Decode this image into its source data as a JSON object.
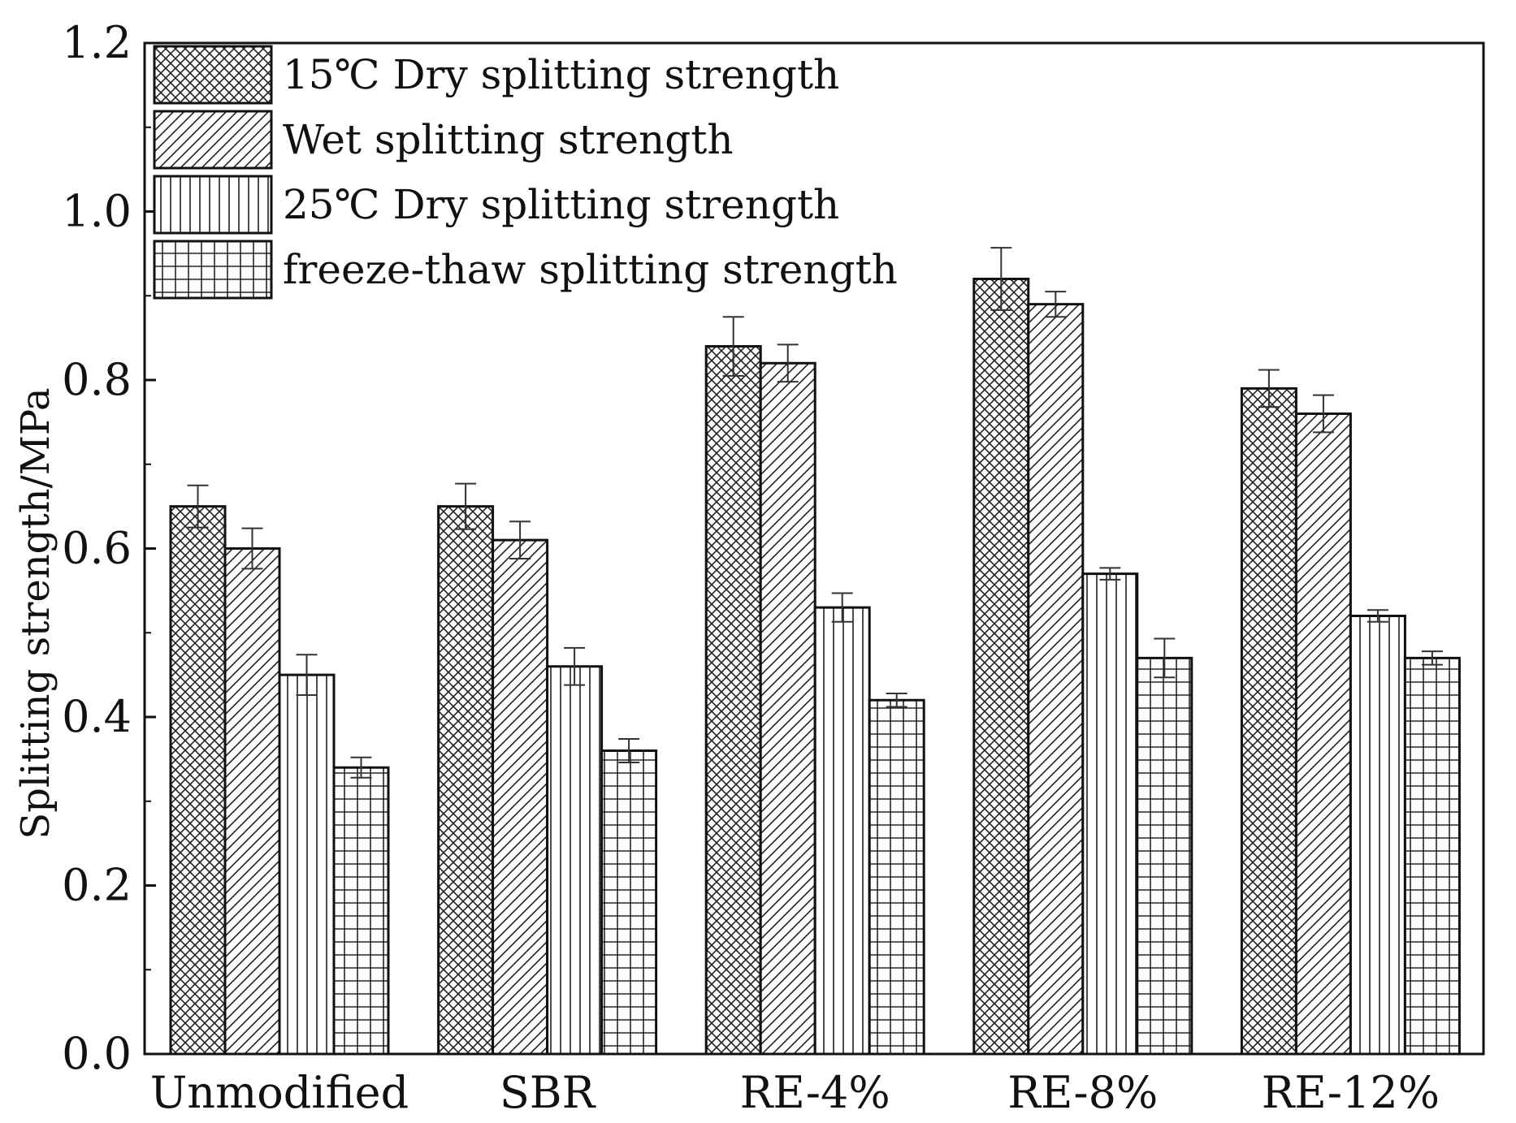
{
  "chart_data": {
    "type": "bar",
    "title": "",
    "xlabel": "",
    "ylabel": "Splitting strength/MPa",
    "ylim": [
      0.0,
      1.2
    ],
    "yticks": [
      "0.0",
      "0.2",
      "0.4",
      "0.6",
      "0.8",
      "1.0",
      "1.2"
    ],
    "ytick_values": [
      0.0,
      0.2,
      0.4,
      0.6,
      0.8,
      1.0,
      1.2
    ],
    "categories": [
      "Unmodified",
      "SBR",
      "RE-4%",
      "RE-8%",
      "RE-12%"
    ],
    "legend_position": "top-left",
    "grid": false,
    "series": [
      {
        "name": "15℃ Dry splitting strength",
        "pattern": "crosshatch",
        "values": [
          0.65,
          0.65,
          0.84,
          0.92,
          0.79
        ],
        "errors": [
          0.025,
          0.027,
          0.035,
          0.037,
          0.022
        ]
      },
      {
        "name": "Wet splitting strength",
        "pattern": "diagonal",
        "values": [
          0.6,
          0.61,
          0.82,
          0.89,
          0.76
        ],
        "errors": [
          0.024,
          0.022,
          0.022,
          0.015,
          0.022
        ]
      },
      {
        "name": "25℃ Dry splitting strength",
        "pattern": "vertical",
        "values": [
          0.45,
          0.46,
          0.53,
          0.57,
          0.52
        ],
        "errors": [
          0.024,
          0.022,
          0.017,
          0.007,
          0.007
        ]
      },
      {
        "name": "freeze-thaw splitting strength",
        "pattern": "grid",
        "values": [
          0.34,
          0.36,
          0.42,
          0.47,
          0.47
        ],
        "errors": [
          0.012,
          0.014,
          0.008,
          0.023,
          0.008
        ]
      }
    ]
  }
}
